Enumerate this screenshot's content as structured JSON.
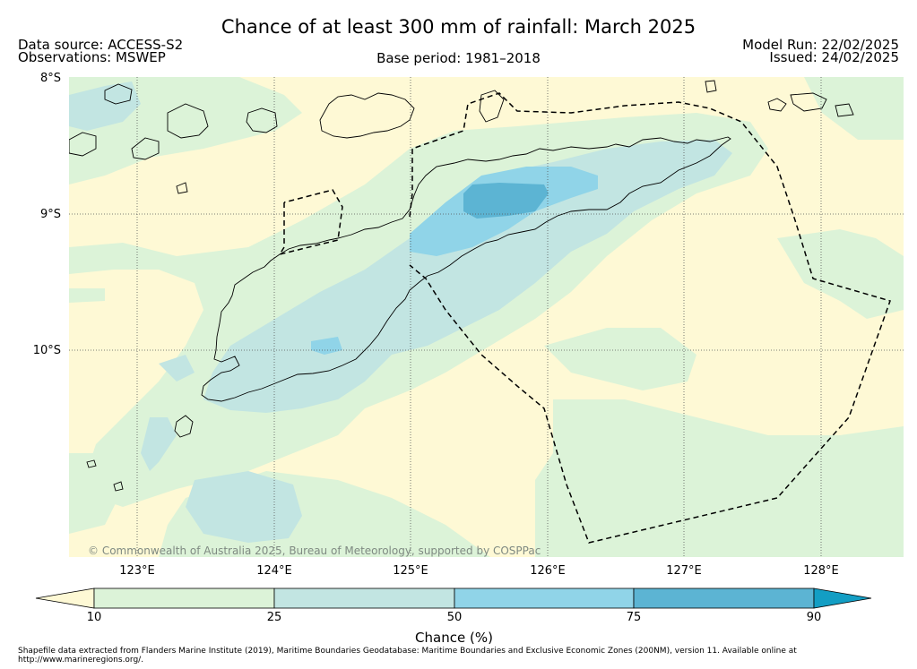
{
  "header": {
    "title": "Chance of at least 300 mm of rainfall: March 2025",
    "data_source": "Data source: ACCESS-S2",
    "observations": "Observations: MSWEP",
    "base_period": "Base period: 1981–2018",
    "model_run": "Model Run: 22/02/2025",
    "issued": "Issued: 24/02/2025"
  },
  "map": {
    "lat_labels": [
      "8°S",
      "9°S",
      "10°S"
    ],
    "lon_labels": [
      "123°E",
      "124°E",
      "125°E",
      "126°E",
      "127°E",
      "128°E"
    ],
    "credit": "© Commonwealth of Australia 2025, Bureau of Meteorology, supported by COSPPac",
    "fill_colors": {
      "below_10": "#fef9d5",
      "10_25": "#dcf3d8",
      "25_50": "#c2e5e2",
      "50_75": "#90d4e8",
      "75_90": "#5cb4d3",
      "above_90": "#139ec4"
    },
    "grid": true
  },
  "colorbar": {
    "ticks": [
      "10",
      "25",
      "50",
      "75",
      "90"
    ],
    "title": "Chance (%)"
  },
  "footer": {
    "line1": "Shapefile data extracted from Flanders Marine Institute (2019), Maritime Boundaries Geodatabase: Maritime Boundaries and Exclusive Economic Zones (200NM), version 11. Available online at",
    "line2": "http://www.marineregions.org/."
  }
}
